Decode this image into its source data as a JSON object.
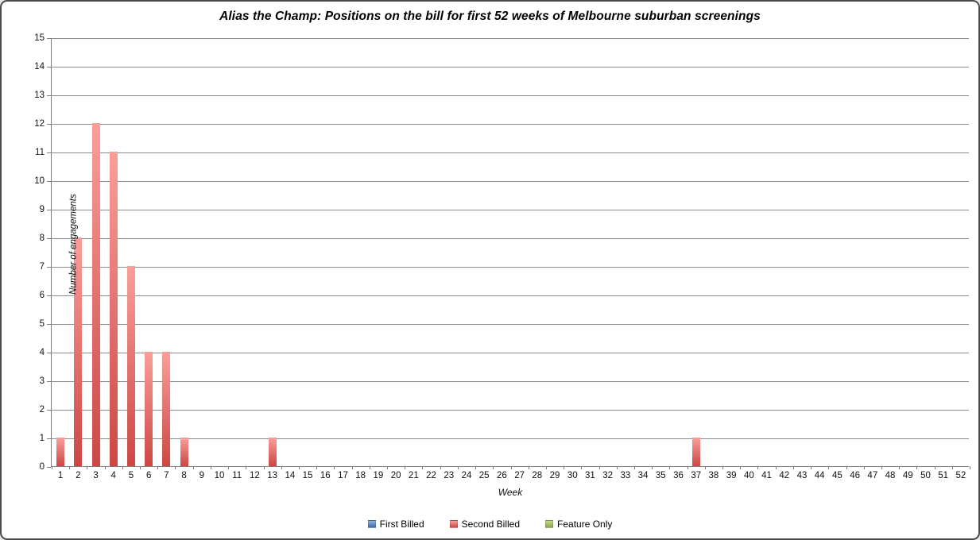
{
  "chart_data": {
    "type": "bar",
    "title": "Alias the Champ: Positions on the bill for first 52 weeks of Melbourne suburban screenings",
    "xlabel": "Week",
    "ylabel": "Number of engagements",
    "ylim": [
      0,
      15
    ],
    "ytick_step": 1,
    "grid": true,
    "legend_position": "bottom",
    "categories": [
      1,
      2,
      3,
      4,
      5,
      6,
      7,
      8,
      9,
      10,
      11,
      12,
      13,
      14,
      15,
      16,
      17,
      18,
      19,
      20,
      21,
      22,
      23,
      24,
      25,
      26,
      27,
      28,
      29,
      30,
      31,
      32,
      33,
      34,
      35,
      36,
      37,
      38,
      39,
      40,
      41,
      42,
      43,
      44,
      45,
      46,
      47,
      48,
      49,
      50,
      51,
      52
    ],
    "series": [
      {
        "name": "First Billed",
        "color": "#4F81BD",
        "gradient_top": "#8FB2DD",
        "gradient_bottom": "#3F6DA3",
        "values": [
          0,
          0,
          0,
          0,
          0,
          0,
          0,
          0,
          0,
          0,
          0,
          0,
          0,
          0,
          0,
          0,
          0,
          0,
          0,
          0,
          0,
          0,
          0,
          0,
          0,
          0,
          0,
          0,
          0,
          0,
          0,
          0,
          0,
          0,
          0,
          0,
          0,
          0,
          0,
          0,
          0,
          0,
          0,
          0,
          0,
          0,
          0,
          0,
          0,
          0,
          0,
          0
        ]
      },
      {
        "name": "Second Billed",
        "color": "#C0504D",
        "gradient_top": "#FA9E9A",
        "gradient_bottom": "#CC4744",
        "values": [
          1,
          8,
          12,
          11,
          7,
          4,
          4,
          1,
          0,
          0,
          0,
          0,
          1,
          0,
          0,
          0,
          0,
          0,
          0,
          0,
          0,
          0,
          0,
          0,
          0,
          0,
          0,
          0,
          0,
          0,
          0,
          0,
          0,
          0,
          0,
          0,
          1,
          0,
          0,
          0,
          0,
          0,
          0,
          0,
          0,
          0,
          0,
          0,
          0,
          0,
          0,
          0
        ]
      },
      {
        "name": "Feature Only",
        "color": "#9BBB59",
        "gradient_top": "#C3D88A",
        "gradient_bottom": "#89A84B",
        "values": [
          0,
          0,
          0,
          0,
          0,
          0,
          0,
          0,
          0,
          0,
          0,
          0,
          0,
          0,
          0,
          0,
          0,
          0,
          0,
          0,
          0,
          0,
          0,
          0,
          0,
          0,
          0,
          0,
          0,
          0,
          0,
          0,
          0,
          0,
          0,
          0,
          0,
          0,
          0,
          0,
          0,
          0,
          0,
          0,
          0,
          0,
          0,
          0,
          0,
          0,
          0,
          0
        ]
      }
    ]
  },
  "colors": {
    "gridline": "#8c8c8c",
    "axis_line": "#7f7f7f",
    "text": "#111111",
    "background": "#ffffff",
    "frame_border": "#4a4a4a"
  }
}
